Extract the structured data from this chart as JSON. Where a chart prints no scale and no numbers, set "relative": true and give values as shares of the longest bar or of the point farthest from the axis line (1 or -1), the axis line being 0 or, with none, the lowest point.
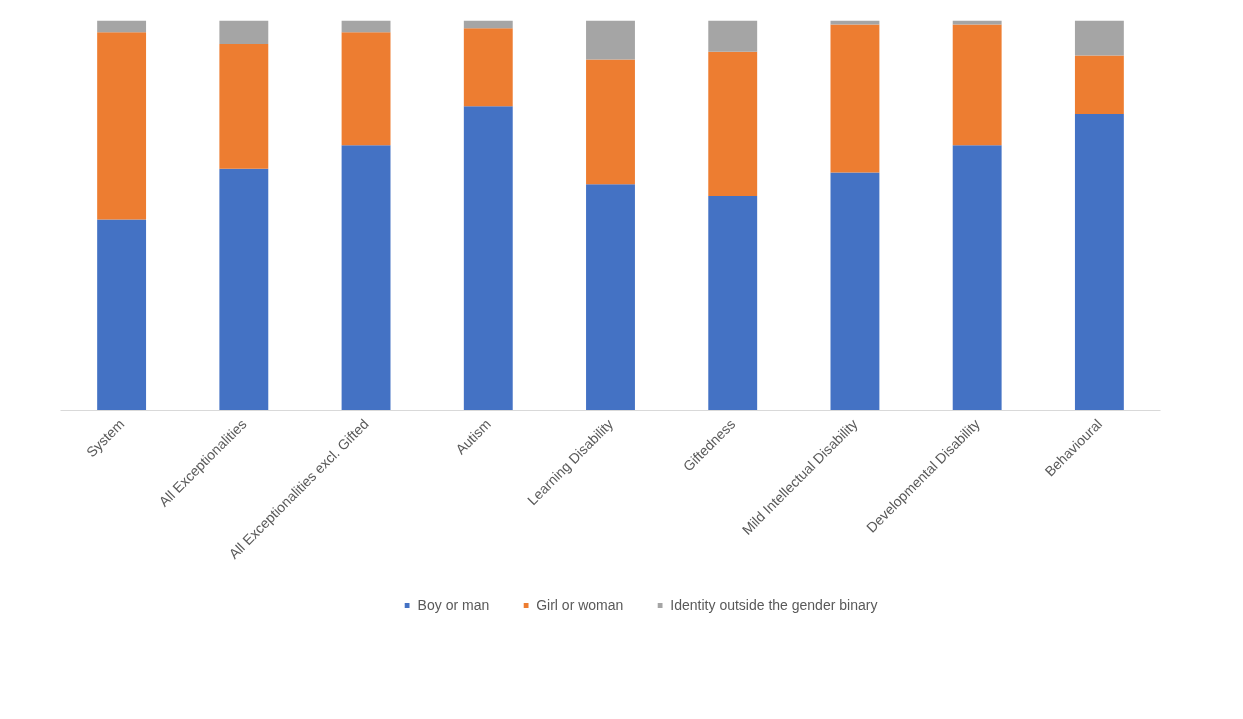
{
  "chart_data": {
    "type": "bar",
    "stacked": true,
    "relative": true,
    "legend": "bottom",
    "grid": false,
    "categories": [
      "System",
      "All Exceptionalities",
      "All Exceptionalities excl. Gifted",
      "Autism",
      "Learning Disability",
      "Giftedness",
      "Mild Intellectual Disability",
      "Developmental Disability",
      "Behavioural"
    ],
    "series": [
      {
        "name": "Boy or man",
        "color": "#4472c4",
        "values": [
          0.49,
          0.62,
          0.68,
          0.78,
          0.58,
          0.55,
          0.61,
          0.68,
          0.76
        ]
      },
      {
        "name": "Girl or woman",
        "color": "#ed7d31",
        "values": [
          0.48,
          0.32,
          0.29,
          0.2,
          0.32,
          0.37,
          0.38,
          0.31,
          0.15
        ]
      },
      {
        "name": "Identity outside the gender binary",
        "color": "#a5a5a5",
        "values": [
          0.03,
          0.06,
          0.03,
          0.02,
          0.1,
          0.08,
          0.01,
          0.01,
          0.09
        ]
      }
    ]
  }
}
